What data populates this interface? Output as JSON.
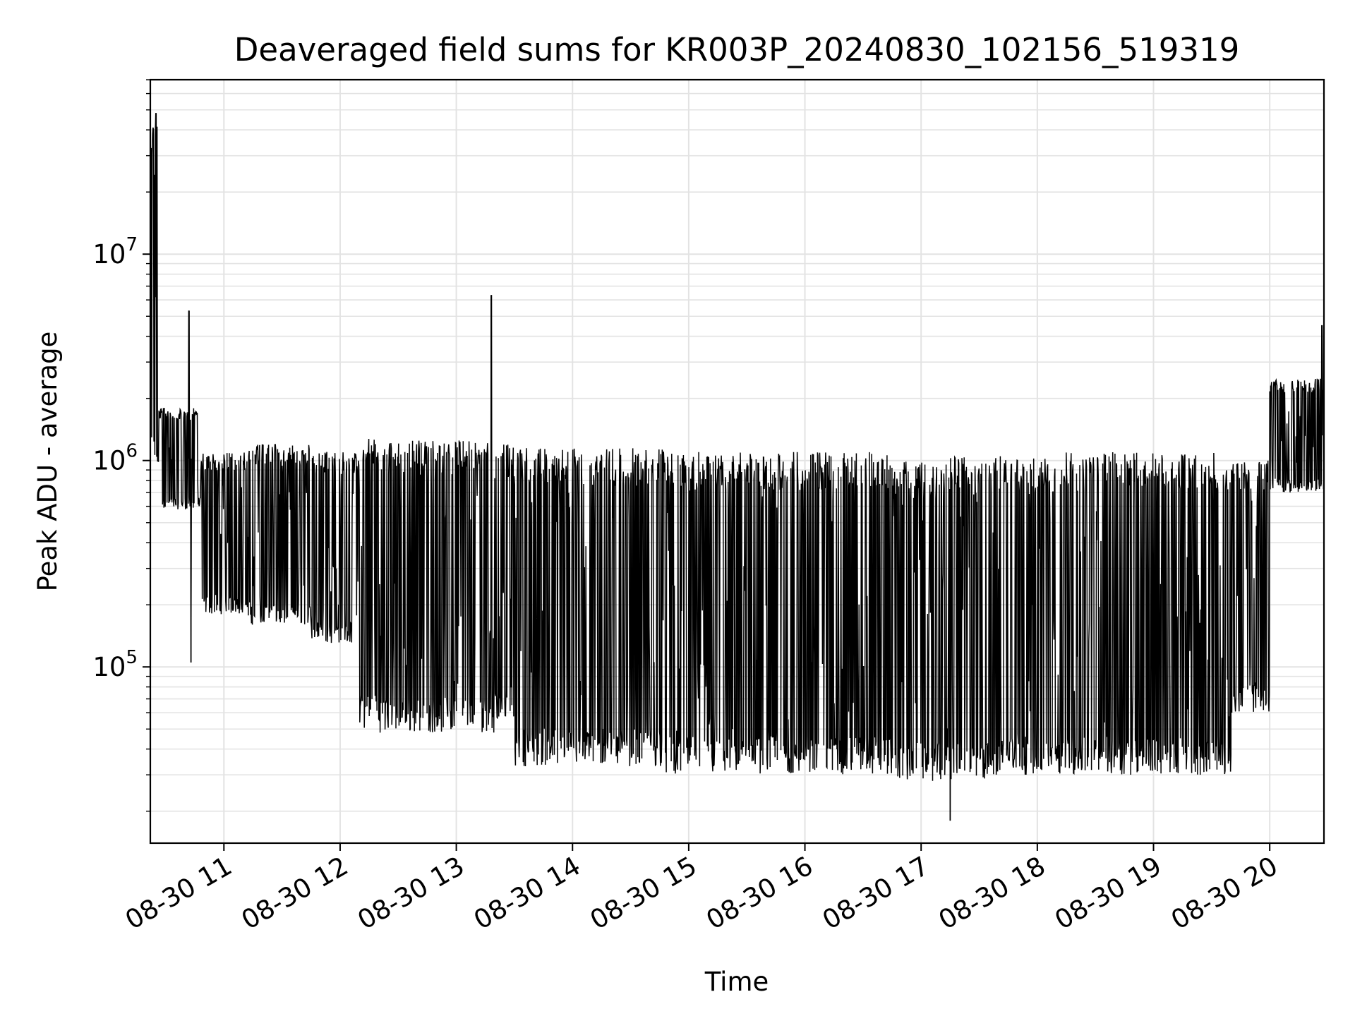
{
  "chart_data": {
    "type": "line",
    "title": "Deaveraged field sums for KR003P_20240830_102156_519319",
    "xlabel": "Time",
    "ylabel": "Peak ADU - average",
    "x_scale": "time",
    "y_scale": "log",
    "xlim": [
      "2024-08-30 10:22",
      "2024-08-30 20:28"
    ],
    "ylim": [
      14000,
      70000000
    ],
    "grid": {
      "major": true,
      "minor_y": true
    },
    "x_ticks": [
      "08-30 11",
      "08-30 12",
      "08-30 13",
      "08-30 14",
      "08-30 15",
      "08-30 16",
      "08-30 17",
      "08-30 18",
      "08-30 19",
      "08-30 20"
    ],
    "x_tick_times": [
      "2024-08-30 11:00",
      "2024-08-30 12:00",
      "2024-08-30 13:00",
      "2024-08-30 14:00",
      "2024-08-30 15:00",
      "2024-08-30 16:00",
      "2024-08-30 17:00",
      "2024-08-30 18:00",
      "2024-08-30 19:00",
      "2024-08-30 20:00"
    ],
    "y_ticks": [
      {
        "base": "10",
        "exp": "5",
        "value": 100000
      },
      {
        "base": "10",
        "exp": "6",
        "value": 1000000
      },
      {
        "base": "10",
        "exp": "7",
        "value": 10000000
      }
    ],
    "series": [
      {
        "name": "",
        "color": "#000000",
        "style": "oscillating",
        "segments": [
          {
            "start": "2024-08-30 10:22",
            "end": "2024-08-30 10:26",
            "low": 850000,
            "high": 45000000
          },
          {
            "start": "2024-08-30 10:26",
            "end": "2024-08-30 10:48",
            "low": 580000,
            "high": 1800000
          },
          {
            "start": "2024-08-30 10:48",
            "end": "2024-08-30 11:12",
            "low": 180000,
            "high": 1100000
          },
          {
            "start": "2024-08-30 11:12",
            "end": "2024-08-30 11:45",
            "low": 160000,
            "high": 1200000
          },
          {
            "start": "2024-08-30 11:45",
            "end": "2024-08-30 12:10",
            "low": 130000,
            "high": 1100000
          },
          {
            "start": "2024-08-30 12:10",
            "end": "2024-08-30 12:20",
            "low": 50000,
            "high": 1300000
          },
          {
            "start": "2024-08-30 12:20",
            "end": "2024-08-30 13:20",
            "low": 48000,
            "high": 1250000
          },
          {
            "start": "2024-08-30 13:20",
            "end": "2024-08-30 13:30",
            "low": 55000,
            "high": 1200000
          },
          {
            "start": "2024-08-30 13:30",
            "end": "2024-08-30 14:48",
            "low": 33000,
            "high": 1150000
          },
          {
            "start": "2024-08-30 14:48",
            "end": "2024-08-30 16:45",
            "low": 30000,
            "high": 1100000
          },
          {
            "start": "2024-08-30 16:45",
            "end": "2024-08-30 17:15",
            "low": 28000,
            "high": 1000000
          },
          {
            "start": "2024-08-30 17:15",
            "end": "2024-08-30 17:40",
            "low": 28000,
            "high": 1050000
          },
          {
            "start": "2024-08-30 17:40",
            "end": "2024-08-30 18:10",
            "low": 30000,
            "high": 1050000
          },
          {
            "start": "2024-08-30 18:10",
            "end": "2024-08-30 19:40",
            "low": 30000,
            "high": 1100000
          },
          {
            "start": "2024-08-30 19:40",
            "end": "2024-08-30 20:00",
            "low": 60000,
            "high": 1000000
          },
          {
            "start": "2024-08-30 20:00",
            "end": "2024-08-30 20:28",
            "low": 700000,
            "high": 2500000
          }
        ],
        "spikes": [
          {
            "x": "2024-08-30 10:25",
            "y": 48000000
          },
          {
            "x": "2024-08-30 10:42",
            "y": 5300000
          },
          {
            "x": "2024-08-30 10:43",
            "y": 105000
          },
          {
            "x": "2024-08-30 13:18",
            "y": 6300000
          },
          {
            "x": "2024-08-30 17:15",
            "y": 18000
          },
          {
            "x": "2024-08-30 20:27",
            "y": 4500000
          }
        ]
      }
    ]
  }
}
